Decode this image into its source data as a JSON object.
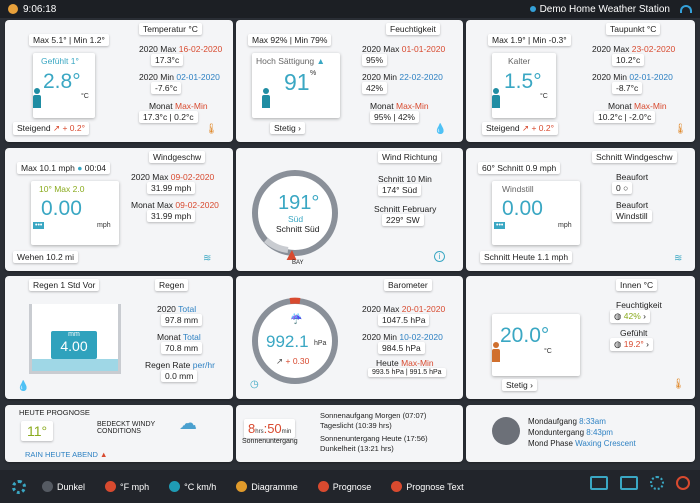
{
  "topbar": {
    "time": "9:06:18",
    "station": "Demo Home Weather Station"
  },
  "temp": {
    "title": "Temperatur °C",
    "max": "Max 5.1°",
    "min": "Min 1.2°",
    "feels": "Gefühlt 1°",
    "value": "2.8°",
    "unit": "°C",
    "trend": "Steigend",
    "trend_val": "+ 0.2°",
    "r1_label": "2020 Max",
    "r1_date": "16-02-2020",
    "r1_val": "17.3°c",
    "r2_label": "2020 Min",
    "r2_date": "02-01-2020",
    "r2_val": "-7.6°c",
    "r3_label": "Monat",
    "r3_hl": "Max-Min",
    "r3_val": "17.3°c | 0.2°c"
  },
  "hum": {
    "title": "Feuchtigkeit",
    "max": "Max 92%",
    "min": "Min 79%",
    "state": "Hoch Sättigung",
    "value": "91",
    "unit": "%",
    "trend": "Stetig",
    "r1_label": "2020 Max",
    "r1_date": "01-01-2020",
    "r1_val": "95%",
    "r2_label": "2020 Min",
    "r2_date": "22-02-2020",
    "r2_val": "42%",
    "r3_label": "Monat",
    "r3_hl": "Max-Min",
    "r3_val": "95% | 42%"
  },
  "dew": {
    "title": "Taupunkt °C",
    "max": "Max 1.9°",
    "min": "Min -0.3°",
    "state": "Kalter",
    "value": "1.5°",
    "unit": "°C",
    "trend": "Steigend",
    "trend_val": "+ 0.2°",
    "r1_label": "2020 Max",
    "r1_date": "23-02-2020",
    "r1_val": "10.2°c",
    "r2_label": "2020 Min",
    "r2_date": "02-01-2020",
    "r2_val": "-8.7°c",
    "r3_label": "Monat",
    "r3_hl": "Max-Min",
    "r3_val": "10.2°c | -2.0°c"
  },
  "wind": {
    "title": "Windgeschw",
    "max": "Max 10.1 mph",
    "time": "00:04",
    "max10": "10° Max 2.0",
    "value": "0.00",
    "unit": "mph",
    "gust": "Wehen 10.2 mi",
    "r1_label": "2020 Max",
    "r1_date": "09-02-2020",
    "r1_val": "31.99 mph",
    "r2_label": "Monat Max",
    "r2_date": "09-02-2020",
    "r2_val": "31.99 mph"
  },
  "winddir": {
    "title": "Wind Richtung",
    "deg": "191°",
    "dir": "Süd",
    "avg": "Schnitt Süd",
    "bay": "BAY",
    "r1_label": "Schnitt 10 Min",
    "r1_val": "174°  Süd",
    "r2_label": "Schnitt February",
    "r2_val": "229°  SW"
  },
  "windavg": {
    "title": "Schnitt Windgeschw",
    "avg": "60° Schnitt 0.9 mph",
    "state": "Windstill",
    "value": "0.00",
    "unit": "mph",
    "today": "Schnitt Heute 1.1 mph",
    "r1_label": "Beaufort",
    "r1_val": "0",
    "r2_label": "Beaufort",
    "r2_val": "Windstill"
  },
  "rain": {
    "title": "Regen",
    "last": "Regen 1 Std Vor",
    "gauge_unit": "mm",
    "gauge_val": "4.00",
    "fill": 0.18,
    "r1_label": "2020",
    "r1_hl": "Total",
    "r1_val": "97.8 mm",
    "r2_label": "Monat",
    "r2_hl": "Total",
    "r2_val": "70.8 mm",
    "r3_label": "Regen Rate",
    "r3_hl": "per/hr",
    "r3_val": "0.0 mm"
  },
  "baro": {
    "title": "Barometer",
    "value": "992.1",
    "unit": "hPa",
    "trend": "+ 0.30",
    "r1_label": "2020 Max",
    "r1_date": "20-01-2020",
    "r1_val": "1047.5 hPa",
    "r2_label": "2020 Min",
    "r2_date": "10-02-2020",
    "r2_val": "984.5 hPa",
    "r3_label": "Heute",
    "r3_hl": "Max-Min",
    "r3_val": "993.5 hPa | 991.5 hPa"
  },
  "indoor": {
    "title": "Innen °C",
    "value": "20.0°",
    "unit": "°C",
    "trend": "Stetig",
    "r1_label": "Feuchtigkeit",
    "r1_val": "42%",
    "r2_label": "Gefühlt",
    "r2_val": "19.2°"
  },
  "forecast": {
    "title": "HEUTE PROGNOSE",
    "temp": "11°",
    "cond": "BEDECKT WINDY CONDITIONS",
    "rain": "RAIN HEUTE ABEND"
  },
  "sun": {
    "hours": "8",
    "hrs": "hrs",
    "mins": "50",
    "min": "min",
    "label": "Sonnenuntergang",
    "l1": "Sonnenaufgang Morgen (07:07)",
    "l2": "Tageslicht (10:39 hrs)",
    "l3": "Sonnenuntergang Heute (17:56)",
    "l4": "Dunkelheit (13:21 hrs)"
  },
  "moon": {
    "rise_label": "Mondaufgang",
    "rise": "8:33am",
    "set_label": "Monduntergang",
    "set": "8:43pm",
    "phase_label": "Mond Phase",
    "phase": "Waxing Crescent"
  },
  "bottom": {
    "items": [
      "Dunkel",
      "°F mph",
      "°C km/h",
      "Diagramme",
      "Prognose",
      "Prognose Text"
    ],
    "colors": [
      "#555a62",
      "#d84a2f",
      "#1f9bb4",
      "#e09a2b",
      "#d84a2f",
      "#d84a2f"
    ]
  }
}
